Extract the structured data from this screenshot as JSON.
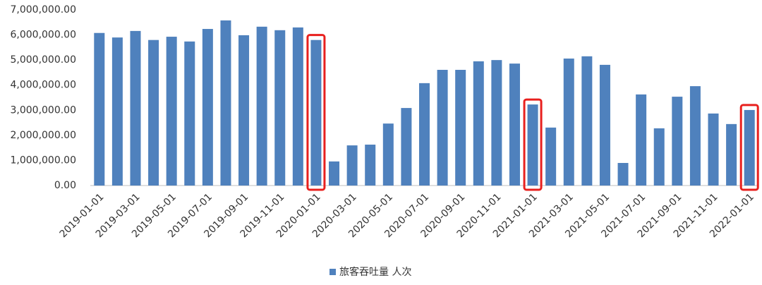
{
  "chart_data": {
    "type": "bar",
    "categories": [
      "2019-01-01",
      null,
      "2019-03-01",
      null,
      "2019-05-01",
      null,
      "2019-07-01",
      null,
      "2019-09-01",
      null,
      "2019-11-01",
      null,
      "2020-01-01",
      null,
      "2020-03-01",
      null,
      "2020-05-01",
      null,
      "2020-07-01",
      null,
      "2020-09-01",
      null,
      "2020-11-01",
      null,
      "2021-01-01",
      null,
      "2021-03-01",
      null,
      "2021-05-01",
      null,
      "2021-07-01",
      null,
      "2021-09-01",
      null,
      "2021-11-01",
      null,
      "2022-01-01"
    ],
    "series": [
      {
        "name": "旅客吞吐量 人次",
        "color": "#4f81bd",
        "values": [
          6080000,
          5900000,
          6160000,
          5800000,
          5930000,
          5740000,
          6240000,
          6580000,
          5990000,
          6330000,
          6190000,
          6300000,
          5800000,
          960000,
          1600000,
          1630000,
          2470000,
          3090000,
          4080000,
          4610000,
          4610000,
          4950000,
          5000000,
          4860000,
          3230000,
          2310000,
          5060000,
          5150000,
          4810000,
          900000,
          3630000,
          2280000,
          3540000,
          3960000,
          2870000,
          2450000,
          3010000
        ]
      }
    ],
    "ylim": [
      0,
      7000000
    ],
    "yticks": [
      {
        "value": 0,
        "label": "0.00"
      },
      {
        "value": 1000000,
        "label": "1,000,000.00"
      },
      {
        "value": 2000000,
        "label": "2,000,000.00"
      },
      {
        "value": 3000000,
        "label": "3,000,000.00"
      },
      {
        "value": 4000000,
        "label": "4,000,000.00"
      },
      {
        "value": 5000000,
        "label": "5,000,000.00"
      },
      {
        "value": 6000000,
        "label": "6,000,000.00"
      },
      {
        "value": 7000000,
        "label": "7,000,000.00"
      }
    ],
    "grid": false,
    "legend": "bottom",
    "highlight_indices": [
      12,
      24,
      36
    ],
    "highlight_color": "#e8201e"
  }
}
